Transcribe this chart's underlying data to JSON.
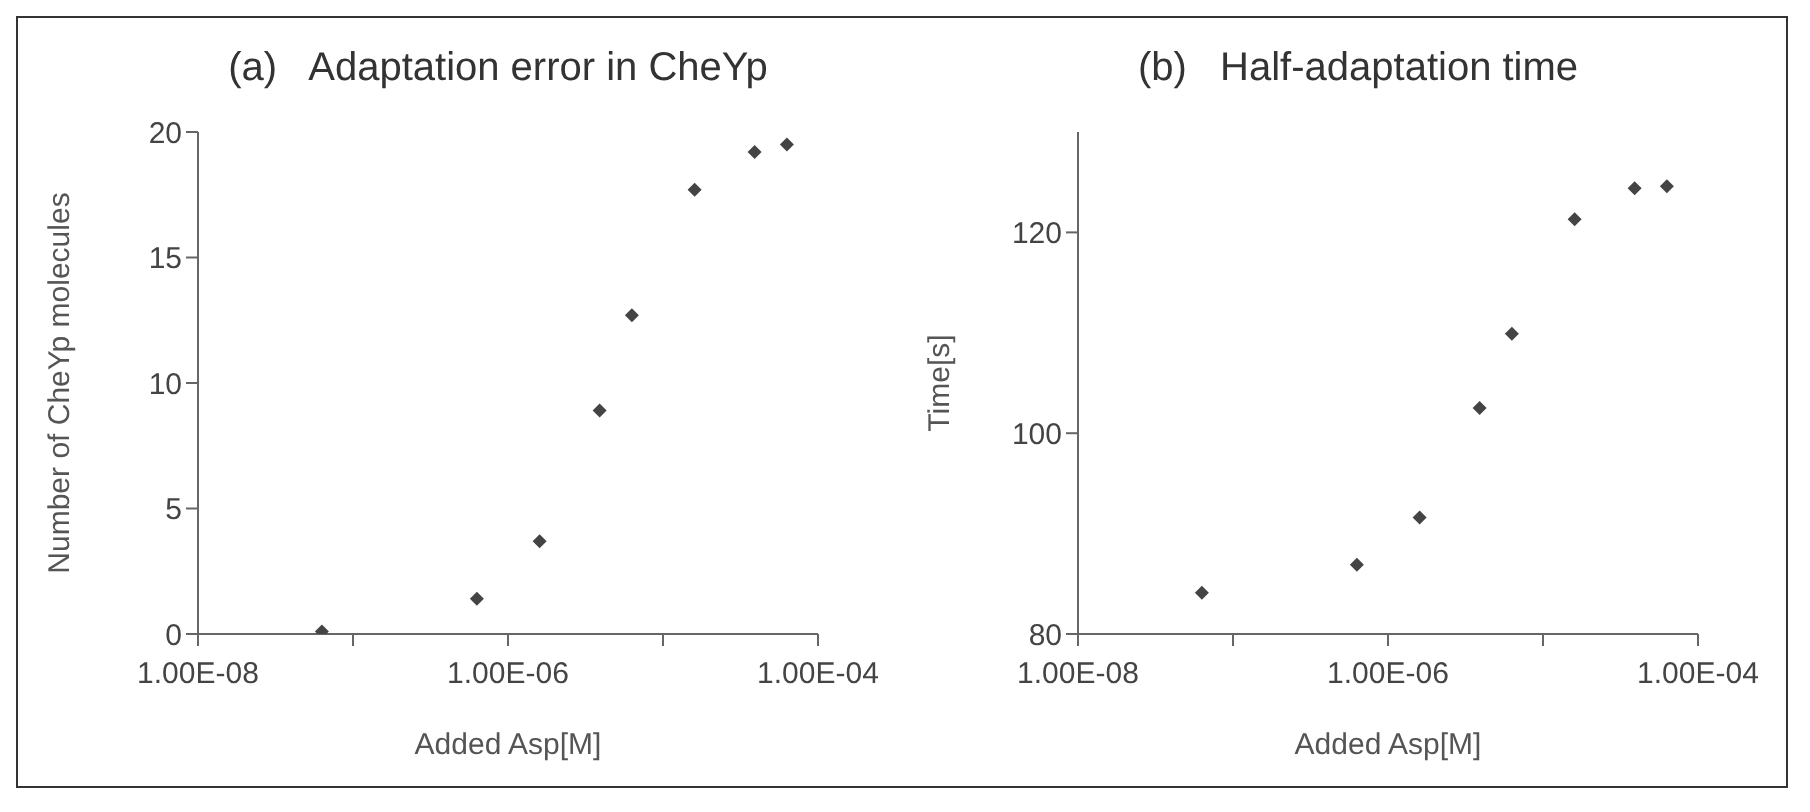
{
  "chart_data": [
    {
      "type": "scatter",
      "title": "(a)   Adaptation error in CheYp",
      "xlabel": "Added Asp[M]",
      "ylabel": "Number of CheYp molecules",
      "log": "x",
      "marker": "diamond",
      "grid": false,
      "x": [
        6.3e-08,
        6.3e-07,
        1.6e-06,
        3.9e-06,
        6.3e-06,
        1.6e-05,
        3.9e-05,
        6.3e-05
      ],
      "series": [
        {
          "color": "#444444",
          "values": [
            0.1,
            1.4,
            3.7,
            8.9,
            12.7,
            17.7,
            19.2,
            19.5
          ]
        }
      ],
      "xlim": [
        1e-08,
        0.0001
      ],
      "xticks": [
        {
          "value": 1e-08,
          "label": "1.00E-08"
        },
        {
          "value": 1e-07,
          "label": null
        },
        {
          "value": 1e-06,
          "label": "1.00E-06"
        },
        {
          "value": 1e-05,
          "label": null
        },
        {
          "value": 0.0001,
          "label": "1.00E-04"
        }
      ],
      "ylim": [
        0,
        20
      ],
      "yticks": [
        0,
        5,
        10,
        15,
        20
      ]
    },
    {
      "type": "scatter",
      "title": "(b)   Half-adaptation time",
      "xlabel": "Added Asp[M]",
      "ylabel": "Time[s]",
      "log": "x",
      "marker": "diamond",
      "grid": false,
      "x": [
        6.3e-08,
        6.3e-07,
        1.6e-06,
        3.9e-06,
        6.3e-06,
        1.6e-05,
        3.9e-05,
        6.3e-05
      ],
      "series": [
        {
          "color": "#444444",
          "values": [
            84.1,
            86.9,
            91.6,
            102.5,
            109.9,
            121.3,
            124.4,
            124.6
          ]
        }
      ],
      "xlim": [
        1e-08,
        0.0001
      ],
      "xticks": [
        {
          "value": 1e-08,
          "label": "1.00E-08"
        },
        {
          "value": 1e-07,
          "label": null
        },
        {
          "value": 1e-06,
          "label": "1.00E-06"
        },
        {
          "value": 1e-05,
          "label": null
        },
        {
          "value": 0.0001,
          "label": "1.00E-04"
        }
      ],
      "ylim": [
        80,
        130
      ],
      "yticks": [
        80,
        100,
        120
      ]
    }
  ]
}
